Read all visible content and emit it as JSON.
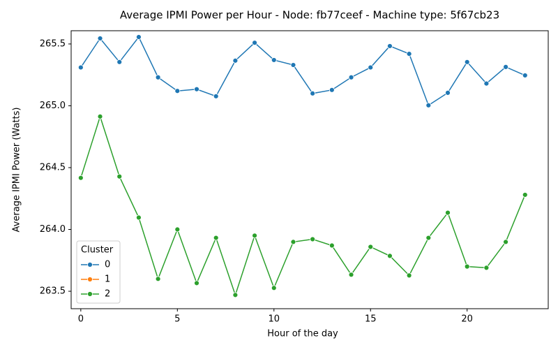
{
  "chart_data": {
    "type": "line",
    "title": "Average IPMI Power per Hour - Node: fb77ceef - Machine type: 5f67cb23",
    "xlabel": "Hour of the day",
    "ylabel": "Average IPMI Power (Watts)",
    "x": [
      0,
      1,
      2,
      3,
      4,
      5,
      6,
      7,
      8,
      9,
      10,
      11,
      12,
      13,
      14,
      15,
      16,
      17,
      18,
      19,
      20,
      21,
      22,
      23
    ],
    "series": [
      {
        "name": "0",
        "color": "#1f77b4",
        "values": [
          265.31,
          265.545,
          265.354,
          265.556,
          265.23,
          265.12,
          265.134,
          265.077,
          265.365,
          265.51,
          265.37,
          265.33,
          265.1,
          265.128,
          265.23,
          265.31,
          265.483,
          265.42,
          265.004,
          265.105,
          265.354,
          265.18,
          265.314,
          265.246
        ]
      },
      {
        "name": "1",
        "color": "#ff7f0e",
        "values": [
          null,
          null,
          null,
          null,
          null,
          null,
          null,
          null,
          null,
          null,
          null,
          null,
          null,
          null,
          null,
          null,
          null,
          null,
          null,
          null,
          null,
          null,
          null,
          null
        ]
      },
      {
        "name": "2",
        "color": "#2ca02c",
        "values": [
          264.417,
          264.913,
          264.428,
          264.096,
          263.6,
          264.0,
          263.566,
          263.932,
          263.47,
          263.95,
          263.527,
          263.899,
          263.921,
          263.87,
          263.634,
          263.859,
          263.786,
          263.628,
          263.932,
          264.135,
          263.7,
          263.69,
          263.899,
          264.28
        ]
      }
    ],
    "xlim": [
      -0.5,
      24.2
    ],
    "ylim": [
      263.359,
      265.607
    ],
    "xticks": [
      0,
      5,
      10,
      15,
      20
    ],
    "yticks": [
      263.5,
      {
        "value": 264.0,
        "label": "264.0"
      },
      264.5,
      {
        "value": 265.0,
        "label": "265.0"
      },
      265.5
    ],
    "grid": false,
    "legend_title": "Cluster",
    "legend_position": "lower left"
  }
}
